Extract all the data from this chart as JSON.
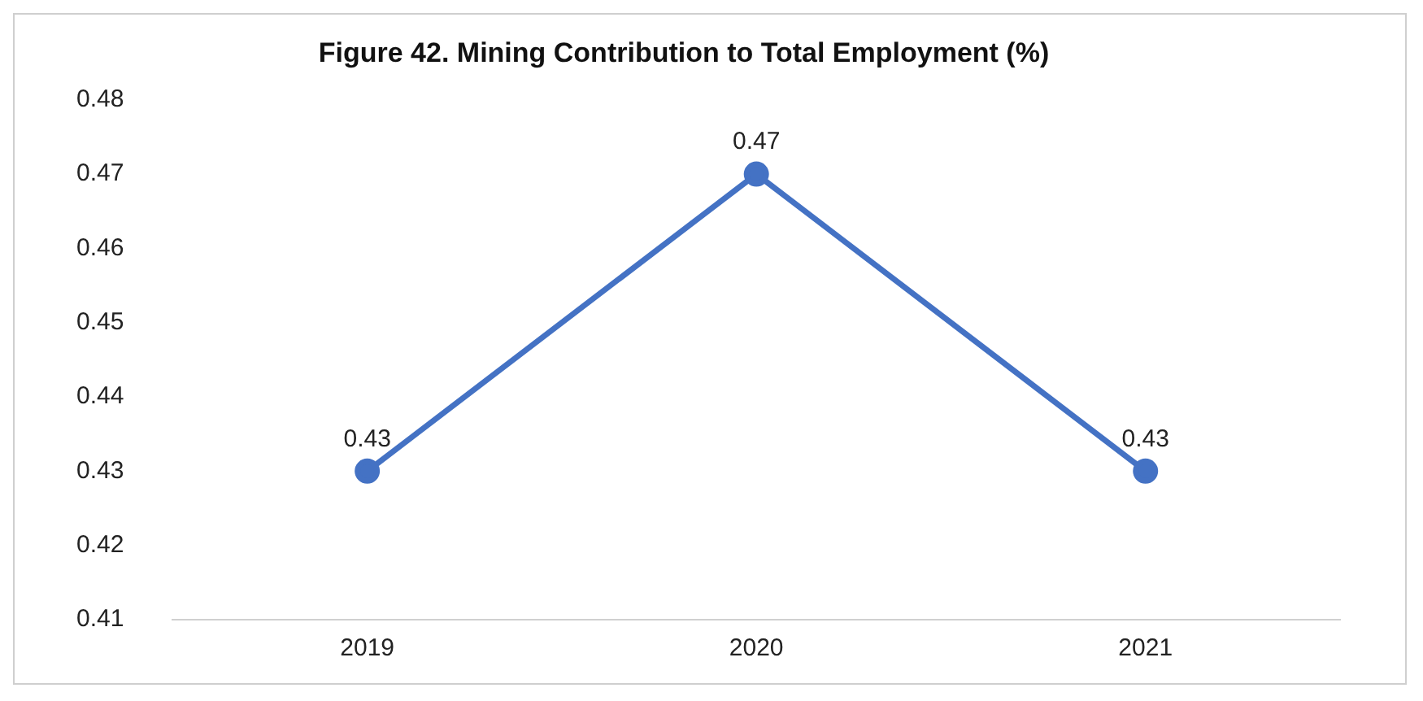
{
  "chart_data": {
    "type": "line",
    "title": "Figure 42. Mining Contribution to Total Employment (%)",
    "categories": [
      "2019",
      "2020",
      "2021"
    ],
    "series": [
      {
        "color": "#4472c4",
        "values": [
          0.43,
          0.47,
          0.43
        ]
      }
    ],
    "ylim": [
      0.41,
      0.48
    ],
    "yticks": [
      0.41,
      0.42,
      0.43,
      0.44,
      0.45,
      0.46,
      0.47,
      0.48
    ],
    "grid": false,
    "legend": false,
    "marker": "circle",
    "line_style": "solid",
    "data_labels": true
  }
}
